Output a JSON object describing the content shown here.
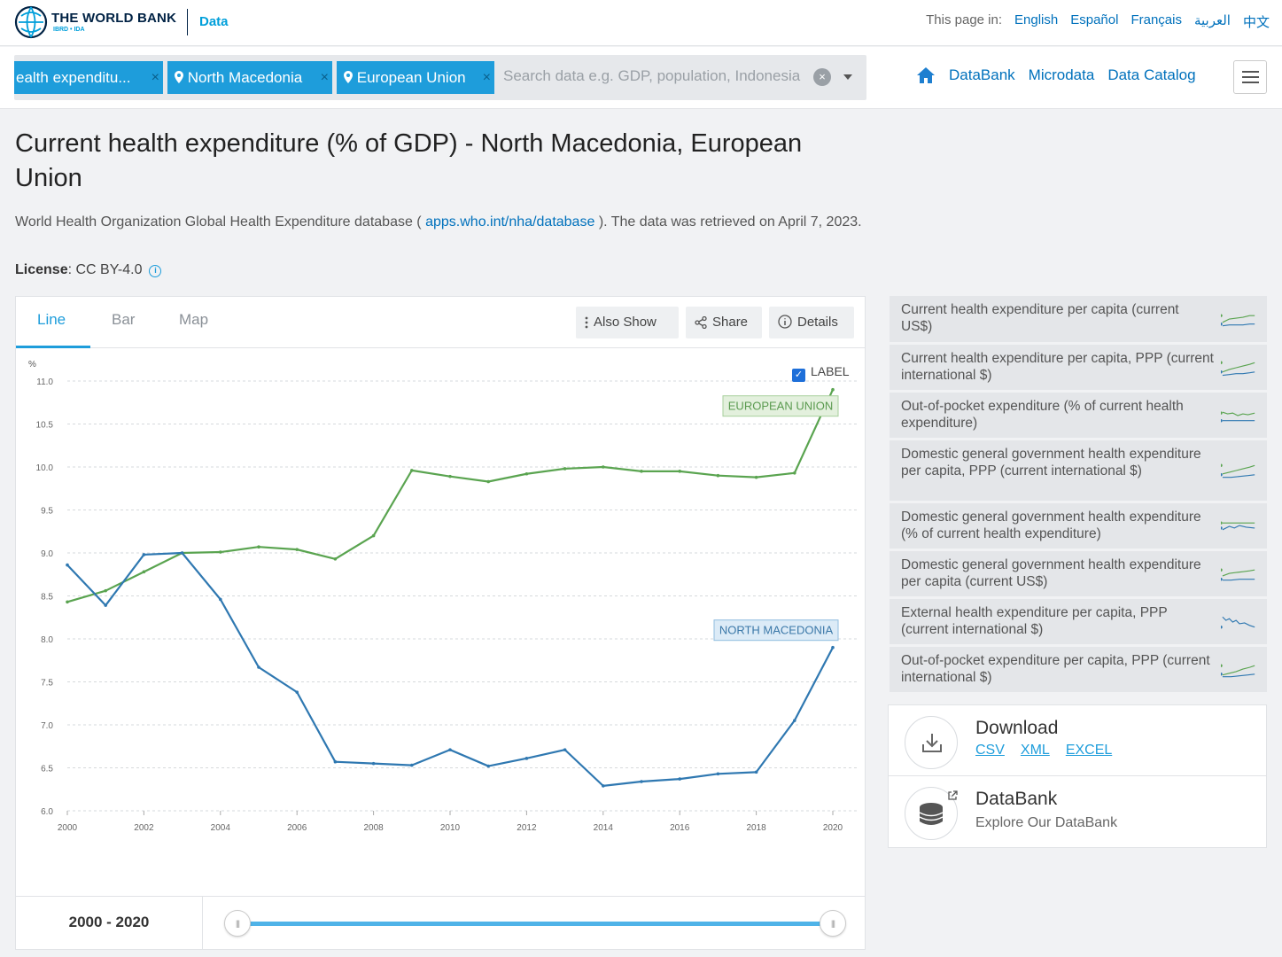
{
  "header": {
    "brand": "THE WORLD BANK",
    "brand_sub": "IBRD • IDA",
    "section": "Data",
    "lang_prefix": "This page in:",
    "languages": [
      "English",
      "Español",
      "Français",
      "العربية",
      "中文"
    ]
  },
  "search": {
    "chips": [
      "ealth expenditu...",
      "North Macedonia",
      "European Union"
    ],
    "placeholder": "Search data e.g. GDP, population, Indonesia"
  },
  "nav": {
    "links": [
      "DataBank",
      "Microdata",
      "Data Catalog"
    ]
  },
  "page": {
    "title": "Current health expenditure (% of GDP) - North Macedonia, European Union",
    "source_prefix": "World Health Organization Global Health Expenditure database (",
    "source_link": "apps.who.int/nha/database",
    "source_suffix": "). The data was retrieved on April 7, 2023.",
    "license_label": "License",
    "license_value": ": CC BY-4.0"
  },
  "tabs": [
    "Line",
    "Bar",
    "Map"
  ],
  "tools": {
    "also_show": "Also Show",
    "share": "Share",
    "details": "Details"
  },
  "label_toggle": "LABEL",
  "range_label": "2000 - 2020",
  "chart_data": {
    "type": "line",
    "ylabel": "%",
    "ylim": [
      6.0,
      11.0
    ],
    "yticks": [
      "6.0",
      "6.5",
      "7.0",
      "7.5",
      "8.0",
      "8.5",
      "9.0",
      "9.5",
      "10.0",
      "10.5",
      "11.0"
    ],
    "x": [
      2000,
      2001,
      2002,
      2003,
      2004,
      2005,
      2006,
      2007,
      2008,
      2009,
      2010,
      2011,
      2012,
      2013,
      2014,
      2015,
      2016,
      2017,
      2018,
      2019,
      2020
    ],
    "xticks": [
      "2000",
      "2002",
      "2004",
      "2006",
      "2008",
      "2010",
      "2012",
      "2014",
      "2016",
      "2018",
      "2020"
    ],
    "grid": true,
    "series": [
      {
        "name": "EUROPEAN UNION",
        "color": "#5aa450",
        "values": [
          8.43,
          8.56,
          8.78,
          9.0,
          9.01,
          9.07,
          9.04,
          8.93,
          9.2,
          9.96,
          9.89,
          9.83,
          9.92,
          9.98,
          10.0,
          9.95,
          9.95,
          9.9,
          9.88,
          9.93,
          10.9
        ]
      },
      {
        "name": "NORTH MACEDONIA",
        "color": "#2f78b1",
        "values": [
          8.86,
          8.39,
          8.98,
          9.0,
          8.46,
          7.67,
          7.38,
          6.57,
          6.55,
          6.53,
          6.71,
          6.52,
          6.61,
          6.71,
          6.29,
          6.34,
          6.37,
          6.43,
          6.45,
          7.05,
          7.9
        ]
      }
    ]
  },
  "related": [
    "Current health expenditure per capita (current US$)",
    "Current health expenditure per capita, PPP (current international $)",
    "Out-of-pocket expenditure (% of current health expenditure)",
    "Domestic general government health expenditure per capita, PPP (current international $)",
    "Domestic general government health expenditure (% of current health expenditure)",
    "Domestic general government health expenditure per capita (current US$)",
    "External health expenditure per capita, PPP (current international $)",
    "Out-of-pocket expenditure per capita, PPP (current international $)"
  ],
  "download": {
    "title": "Download",
    "formats": [
      "CSV",
      "XML",
      "EXCEL"
    ]
  },
  "databank": {
    "title": "DataBank",
    "subtitle": "Explore Our DataBank"
  }
}
